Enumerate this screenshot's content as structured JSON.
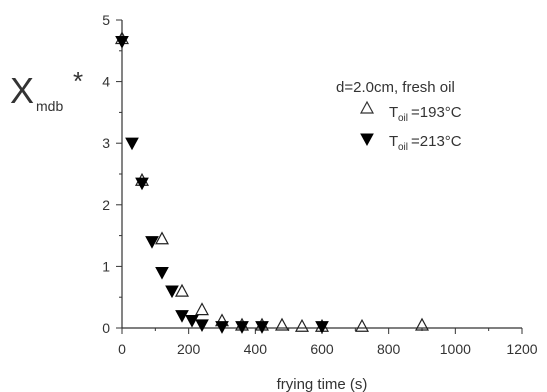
{
  "chart_data": {
    "type": "scatter",
    "title": "",
    "xlabel": "frying time (s)",
    "ylabel": {
      "main": "X",
      "subscript": "mdb",
      "superscript": "*"
    },
    "xlim": [
      0,
      1200
    ],
    "ylim": [
      0,
      5
    ],
    "xticks": [
      0,
      200,
      400,
      600,
      800,
      1000,
      1200
    ],
    "yticks": [
      0,
      1,
      2,
      3,
      4,
      5
    ],
    "grid": false,
    "legend": {
      "placement": "top-right",
      "title": "d=2.0cm, fresh oil",
      "entries": [
        {
          "symbol": "open-triangle-up",
          "label_main": "T",
          "label_sub": "oil",
          "label_rest": "=193°C"
        },
        {
          "symbol": "filled-triangle-down",
          "label_main": "T",
          "label_sub": "oil",
          "label_rest": "=213°C"
        }
      ]
    },
    "series": [
      {
        "name": "Toil=193°C",
        "marker": "open-triangle-up",
        "color": "#222222",
        "points": [
          [
            0,
            4.7
          ],
          [
            60,
            2.4
          ],
          [
            120,
            1.45
          ],
          [
            180,
            0.6
          ],
          [
            240,
            0.3
          ],
          [
            300,
            0.12
          ],
          [
            360,
            0.05
          ],
          [
            420,
            0.05
          ],
          [
            480,
            0.05
          ],
          [
            540,
            0.03
          ],
          [
            600,
            0.03
          ],
          [
            720,
            0.03
          ],
          [
            900,
            0.05
          ]
        ]
      },
      {
        "name": "Toil=213°C",
        "marker": "filled-triangle-down",
        "color": "#000000",
        "points": [
          [
            0,
            4.65
          ],
          [
            30,
            3.0
          ],
          [
            60,
            2.35
          ],
          [
            90,
            1.4
          ],
          [
            120,
            0.9
          ],
          [
            150,
            0.6
          ],
          [
            180,
            0.2
          ],
          [
            210,
            0.12
          ],
          [
            240,
            0.05
          ],
          [
            300,
            0.02
          ],
          [
            360,
            0.02
          ],
          [
            420,
            0.02
          ],
          [
            600,
            0.02
          ]
        ]
      }
    ]
  }
}
